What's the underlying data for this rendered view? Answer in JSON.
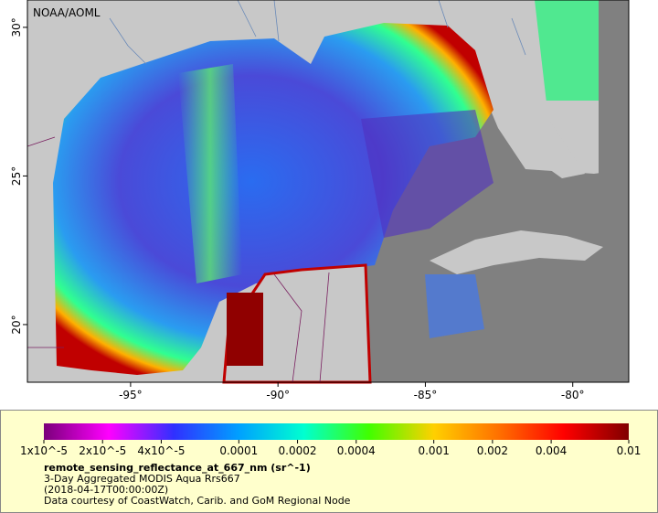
{
  "map": {
    "label": "NOAA/AOML",
    "xlim": [
      -98.5,
      -78.1
    ],
    "ylim": [
      18.06,
      30.92
    ],
    "lon_ticks": [
      {
        "value": -95,
        "label": "-95°"
      },
      {
        "value": -90,
        "label": "-90°"
      },
      {
        "value": -85,
        "label": "-85°"
      },
      {
        "value": -80,
        "label": "-80°"
      }
    ],
    "lat_ticks": [
      {
        "value": 20,
        "label": "20°"
      },
      {
        "value": 25,
        "label": "25°"
      },
      {
        "value": 30,
        "label": "30°"
      }
    ],
    "colorbar": {
      "log_scale": true,
      "lim": [
        1e-05,
        0.01
      ],
      "colors": [
        "#7a007a",
        "#ff00ff",
        "#3030ff",
        "#00a0ff",
        "#00ffd0",
        "#40ff00",
        "#ffd000",
        "#ff7000",
        "#ff0000",
        "#800000"
      ],
      "ticks": [
        {
          "value": 1e-05,
          "label": "1x10^-5"
        },
        {
          "value": 2e-05,
          "label": "2x10^-5"
        },
        {
          "value": 4e-05,
          "label": "4x10^-5"
        },
        0.0001,
        0.0002,
        0.0004,
        0.001,
        0.002,
        0.004,
        0.01
      ]
    },
    "caption": {
      "variable": "remote_sensing_reflectance_at_667_nm (sr^-1)",
      "product": "3-Day Aggregated MODIS Aqua Rrs667",
      "time": "(2018-04-17T00:00:00Z)",
      "credit": "Data courtesy of CoastWatch, Carib. and GoM Regional Node"
    }
  }
}
